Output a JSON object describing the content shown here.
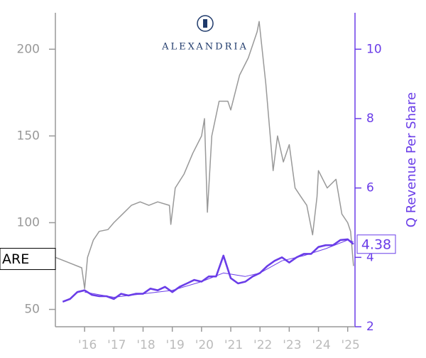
{
  "chart_data": {
    "type": "line",
    "ticker": "ARE",
    "logo_text": "ALEXANDRIA",
    "y2label": "Q Revenue Per Share",
    "xlim": [
      2015,
      2025.25
    ],
    "xticks": [
      {
        "value": 2016,
        "label": "'16"
      },
      {
        "value": 2017,
        "label": "'17"
      },
      {
        "value": 2018,
        "label": "'18"
      },
      {
        "value": 2019,
        "label": "'19"
      },
      {
        "value": 2020,
        "label": "'20"
      },
      {
        "value": 2021,
        "label": "'21"
      },
      {
        "value": 2022,
        "label": "'22"
      },
      {
        "value": 2023,
        "label": "'23"
      },
      {
        "value": 2024,
        "label": "'24"
      },
      {
        "value": 2025,
        "label": "'25"
      }
    ],
    "ylim": [
      40,
      221
    ],
    "yticks": [
      50,
      100,
      150,
      200
    ],
    "y2lim": [
      2,
      11.05
    ],
    "y2ticks": [
      2,
      4,
      6,
      8,
      10
    ],
    "series": [
      {
        "color": "#999999",
        "width": 1.5,
        "x": [
          2015.0,
          2015.3,
          2015.6,
          2015.9,
          2016.0,
          2016.1,
          2016.3,
          2016.5,
          2016.8,
          2017.0,
          2017.3,
          2017.6,
          2017.9,
          2018.2,
          2018.5,
          2018.9,
          2018.95,
          2019.1,
          2019.4,
          2019.7,
          2020.0,
          2020.1,
          2020.2,
          2020.35,
          2020.6,
          2020.9,
          2021.0,
          2021.3,
          2021.6,
          2021.9,
          2021.97,
          2022.2,
          2022.35,
          2022.45,
          2022.6,
          2022.8,
          2023.0,
          2023.2,
          2023.4,
          2023.6,
          2023.8,
          2023.95,
          2024.0,
          2024.3,
          2024.6,
          2024.8,
          2025.0,
          2025.1,
          2025.2
        ],
        "values": [
          80,
          78,
          76,
          74,
          62,
          80,
          90,
          95,
          96,
          100,
          105,
          110,
          112,
          110,
          112,
          110,
          99,
          120,
          128,
          140,
          150,
          160,
          106,
          150,
          170,
          170,
          165,
          185,
          195,
          210,
          216,
          180,
          150,
          130,
          150,
          135,
          145,
          120,
          115,
          110,
          93,
          115,
          130,
          120,
          125,
          105,
          100,
          95,
          75
        ]
      },
      {
        "color": "#6a3de8",
        "width": 2.6,
        "axis": "y2",
        "x": [
          2015.25,
          2015.5,
          2015.75,
          2016.0,
          2016.25,
          2016.5,
          2016.75,
          2017.0,
          2017.25,
          2017.5,
          2017.75,
          2018.0,
          2018.25,
          2018.5,
          2018.75,
          2019.0,
          2019.25,
          2019.5,
          2019.75,
          2020.0,
          2020.25,
          2020.5,
          2020.75,
          2021.0,
          2021.25,
          2021.5,
          2021.75,
          2022.0,
          2022.25,
          2022.5,
          2022.75,
          2023.0,
          2023.25,
          2023.5,
          2023.75,
          2024.0,
          2024.25,
          2024.5,
          2024.75,
          2025.0,
          2025.2
        ],
        "values": [
          2.72,
          2.8,
          3.0,
          3.05,
          2.92,
          2.88,
          2.88,
          2.8,
          2.95,
          2.9,
          2.95,
          2.95,
          3.1,
          3.05,
          3.15,
          3.0,
          3.15,
          3.25,
          3.35,
          3.3,
          3.45,
          3.45,
          4.05,
          3.4,
          3.25,
          3.3,
          3.45,
          3.55,
          3.75,
          3.9,
          4.0,
          3.85,
          4.0,
          4.1,
          4.1,
          4.3,
          4.35,
          4.35,
          4.5,
          4.52,
          4.38
        ]
      },
      {
        "color": "#6a3de8",
        "width": 1,
        "axis": "y2",
        "x": [
          2016.0,
          2017.0,
          2018.0,
          2019.0,
          2020.0,
          2020.75,
          2021.5,
          2022.0,
          2022.75,
          2023.5,
          2024.25,
          2025.0,
          2025.2
        ],
        "values": [
          3.0,
          2.85,
          2.95,
          3.05,
          3.3,
          3.55,
          3.45,
          3.55,
          3.9,
          4.05,
          4.25,
          4.5,
          4.45
        ]
      }
    ]
  }
}
